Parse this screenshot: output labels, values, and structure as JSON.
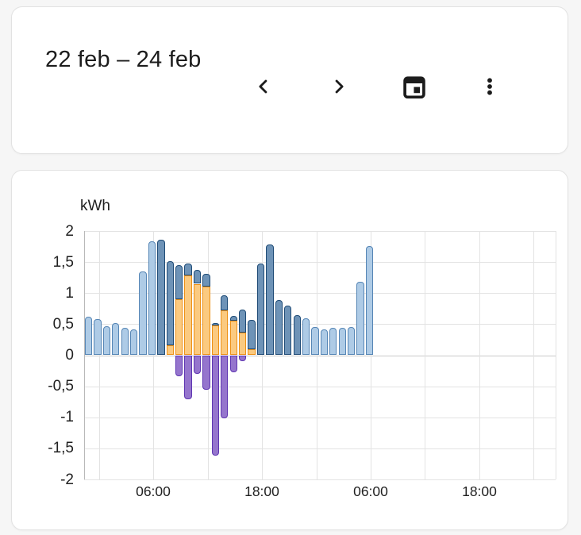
{
  "header": {
    "title": "22 feb – 24 feb",
    "buttons": {
      "previous": "chevron-left",
      "next": "chevron-right",
      "calendar": "calendar",
      "menu": "kebab-menu"
    }
  },
  "chart_data": {
    "type": "bar",
    "title": "kWh",
    "ylabel": "kWh",
    "ylim": [
      -2,
      2
    ],
    "y_tick_labels": [
      "2",
      "1,5",
      "1",
      "0,5",
      "0",
      "-0,5",
      "-1",
      "-1,5",
      "-2"
    ],
    "y_tick_values": [
      2,
      1.5,
      1,
      0.5,
      0,
      -0.5,
      -1,
      -1.5,
      -2
    ],
    "x_tick_labels": [
      "06:00",
      "18:00",
      "06:00",
      "18:00"
    ],
    "grid": "on",
    "legend": "none",
    "colors": {
      "light_blue_fill": "#aecbe6",
      "light_blue_border": "#5585b5",
      "dark_blue_fill": "#6e93b7",
      "dark_blue_border": "#1f4b76",
      "orange_fill": "#fbca80",
      "orange_border": "#ed9015",
      "purple_fill": "#9575cd",
      "purple_border": "#5e35b1"
    },
    "series_note": "hourly energy bars: lb=light-blue consumption, db=top of dark-blue consumption stacked over orange solar (or), ret=purple energy returned to grid (negative)",
    "bars": [
      {
        "lb": 0.62
      },
      {
        "lb": 0.58
      },
      {
        "lb": 0.47
      },
      {
        "lb": 0.52
      },
      {
        "lb": 0.44
      },
      {
        "lb": 0.42
      },
      {
        "lb": 1.35
      },
      {
        "lb": 1.83
      },
      {
        "db": 1.86
      },
      {
        "or": 0.16,
        "db": 1.52
      },
      {
        "or": 0.9,
        "db": 1.45,
        "ret": -0.34
      },
      {
        "or": 1.28,
        "db": 1.48,
        "ret": -0.71
      },
      {
        "or": 1.15,
        "db": 1.38,
        "ret": -0.3
      },
      {
        "or": 1.1,
        "db": 1.31,
        "ret": -0.56
      },
      {
        "or": 0.48,
        "db": 0.52,
        "ret": -1.62
      },
      {
        "or": 0.72,
        "db": 0.96,
        "ret": -1.02
      },
      {
        "or": 0.55,
        "db": 0.63,
        "ret": -0.28
      },
      {
        "or": 0.36,
        "db": 0.74,
        "ret": -0.09
      },
      {
        "or": 0.1,
        "db": 0.57
      },
      {
        "db": 1.48
      },
      {
        "db": 1.78
      },
      {
        "db": 0.89
      },
      {
        "db": 0.8
      },
      {
        "db": 0.65
      },
      {
        "lb": 0.6
      },
      {
        "lb": 0.46
      },
      {
        "lb": 0.41
      },
      {
        "lb": 0.44
      },
      {
        "lb": 0.44
      },
      {
        "lb": 0.46
      },
      {
        "lb": 1.18
      },
      {
        "lb": 1.76
      }
    ]
  }
}
